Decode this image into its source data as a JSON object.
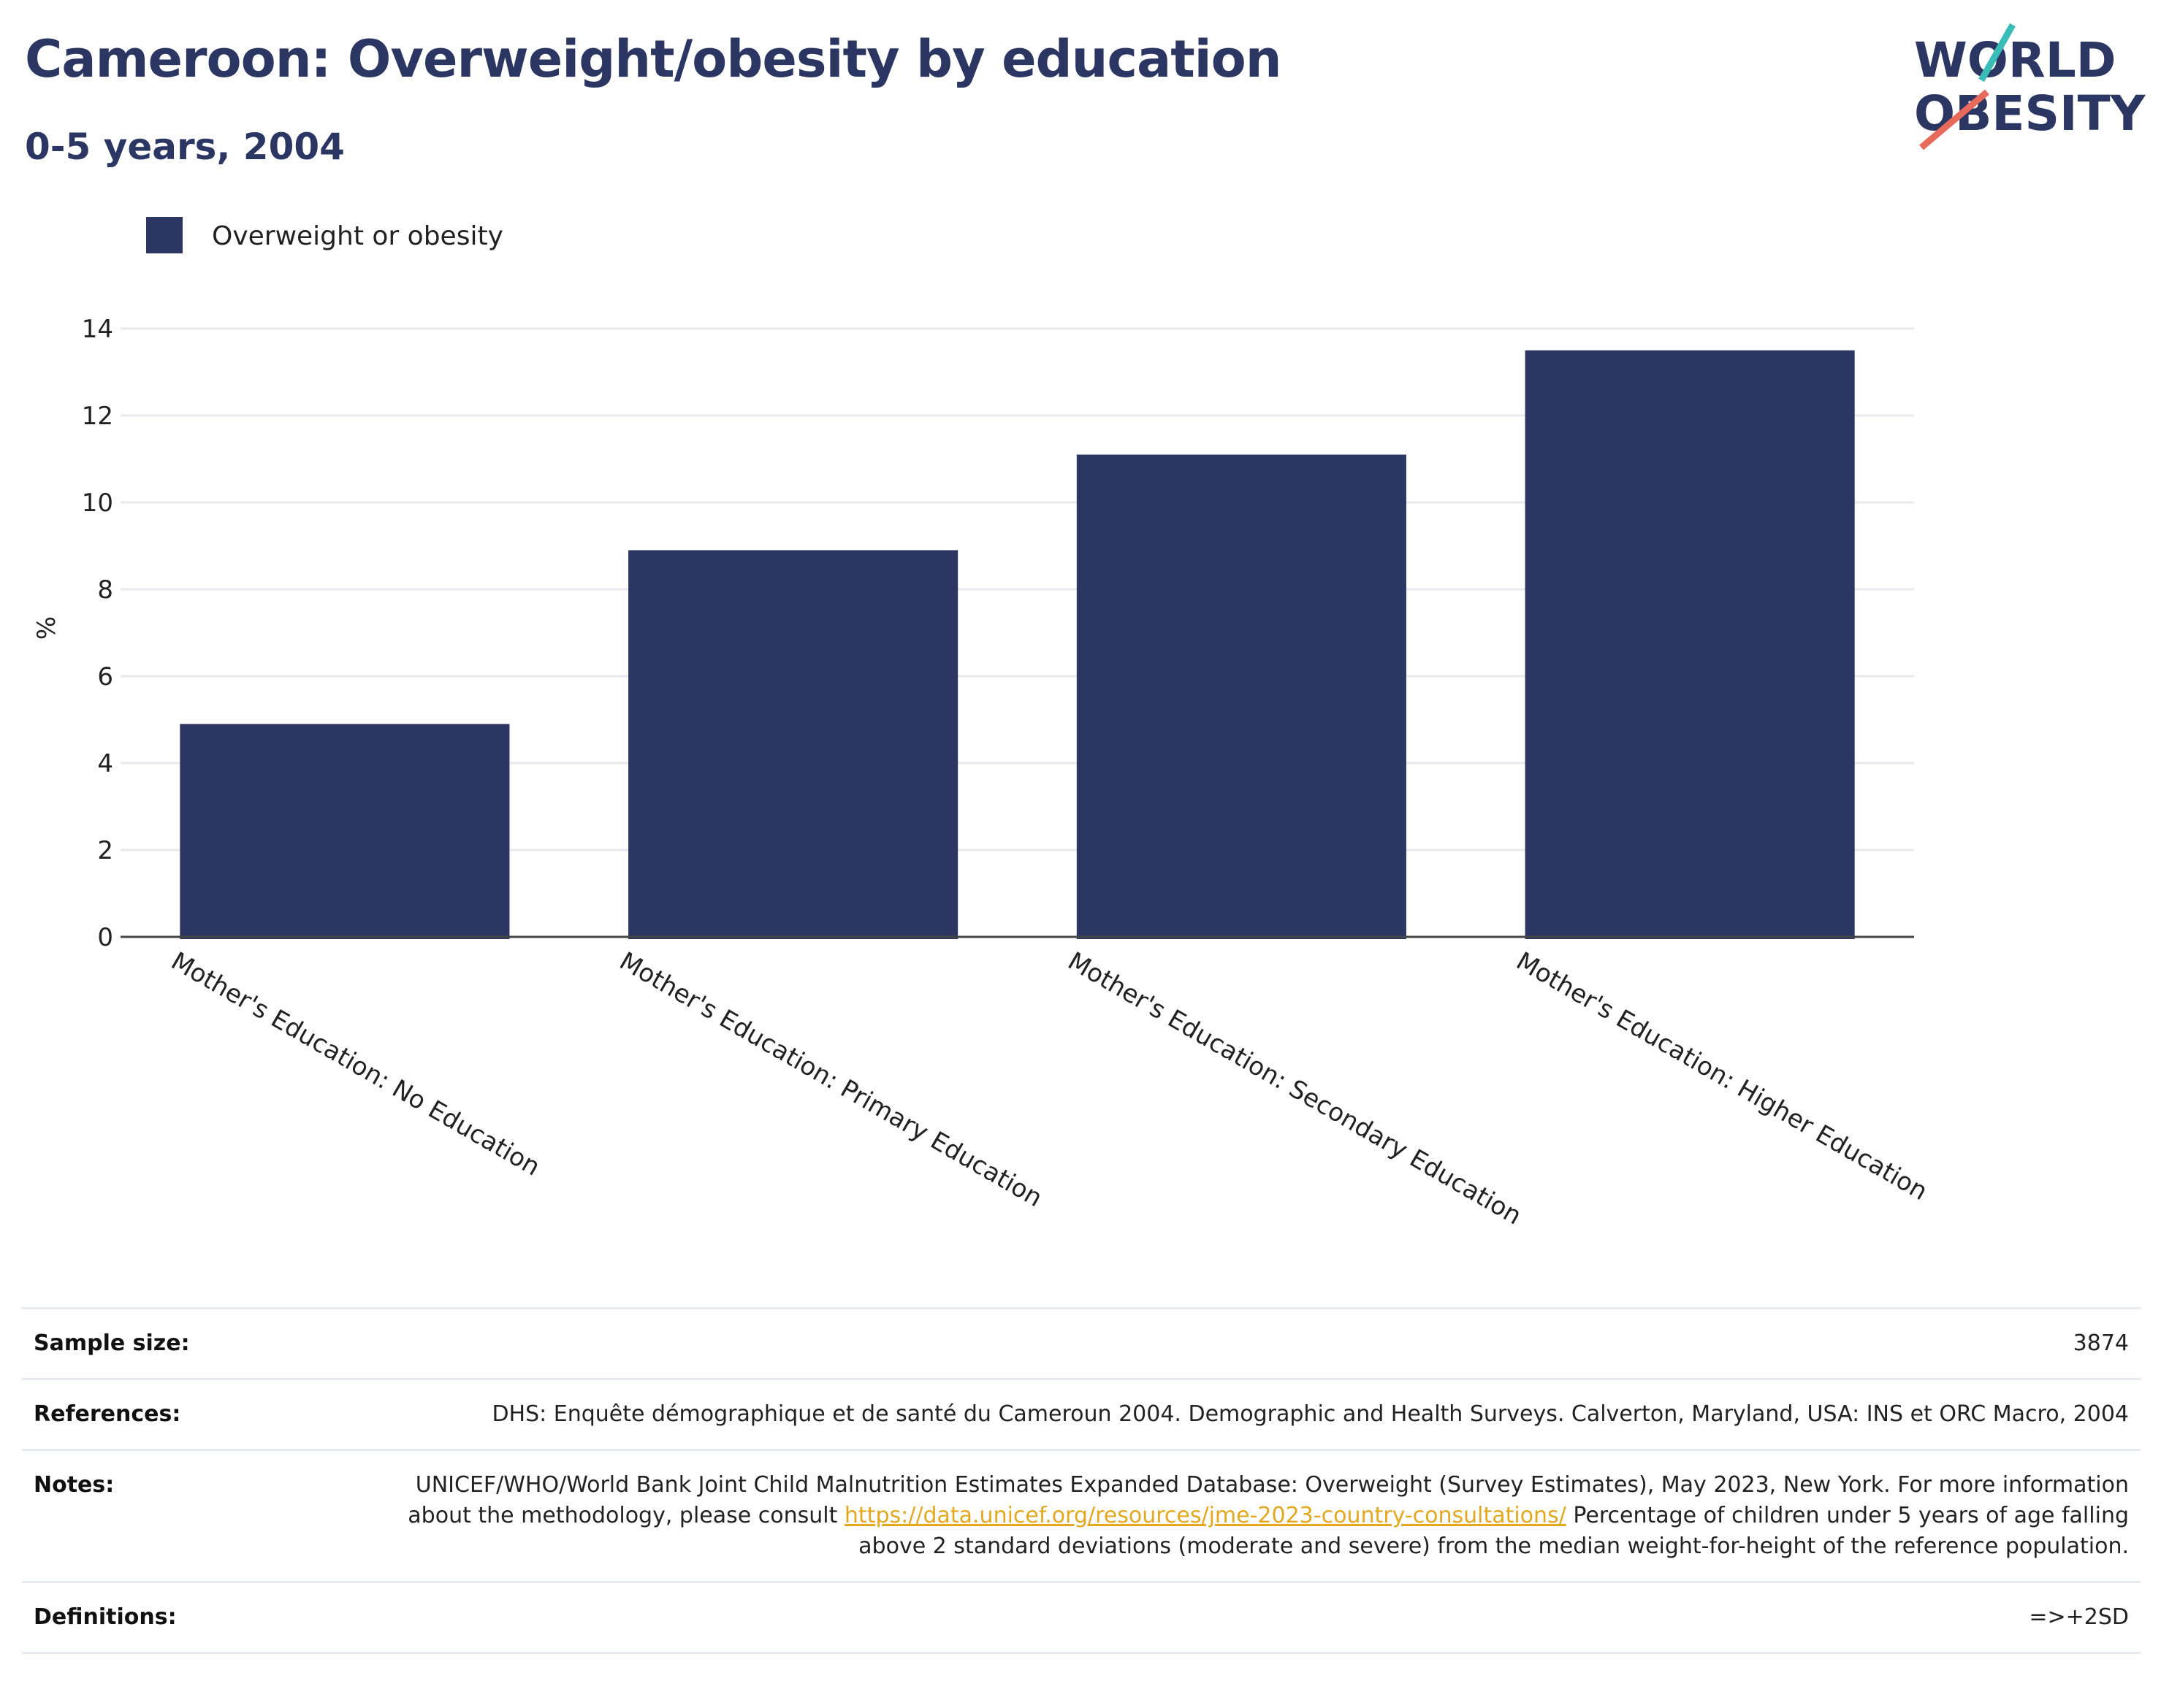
{
  "header": {
    "title": "Cameroon: Overweight/obesity by education",
    "subtitle": "0-5 years, 2004"
  },
  "logo": {
    "line1": "WORLD",
    "line2": "OBESITY"
  },
  "colors": {
    "bar": "#2b3663",
    "title": "#2b3663",
    "grid": "#e8e8ee",
    "logo_teal": "#3bbdb7",
    "logo_coral": "#e86a5a"
  },
  "chart_data": {
    "type": "bar",
    "title": "Cameroon: Overweight/obesity by education",
    "subtitle": "0-5 years, 2004",
    "categories": [
      "Mother's Education: No Education",
      "Mother's Education: Primary Education",
      "Mother's Education: Secondary Education",
      "Mother's Education: Higher Education"
    ],
    "series": [
      {
        "name": "Overweight or obesity",
        "values": [
          4.9,
          8.9,
          11.1,
          13.5
        ]
      }
    ],
    "ylabel": "%",
    "ylim": [
      0,
      14
    ],
    "yticks": [
      0,
      2,
      4,
      6,
      8,
      10,
      12,
      14
    ],
    "grid": true,
    "legend": "top-left"
  },
  "info": {
    "sample_size": {
      "label": "Sample size:",
      "value": "3874"
    },
    "references": {
      "label": "References:",
      "value": "DHS: Enquête démographique et de santé du Cameroun 2004. Demographic and Health Surveys. Calverton, Maryland, USA: INS et ORC Macro, 2004"
    },
    "notes": {
      "label": "Notes:",
      "before": "UNICEF/WHO/World Bank Joint Child Malnutrition Estimates Expanded Database: Overweight (Survey Estimates), May 2023, New York. For more information about the methodology, please consult ",
      "link": "https://data.unicef.org/resources/jme-2023-country-consultations/",
      "after": " Percentage of children under 5 years of age falling above 2 standard deviations (moderate and severe) from the median weight-for-height of the reference population."
    },
    "definitions": {
      "label": "Definitions:",
      "value": "=>+2SD"
    }
  }
}
